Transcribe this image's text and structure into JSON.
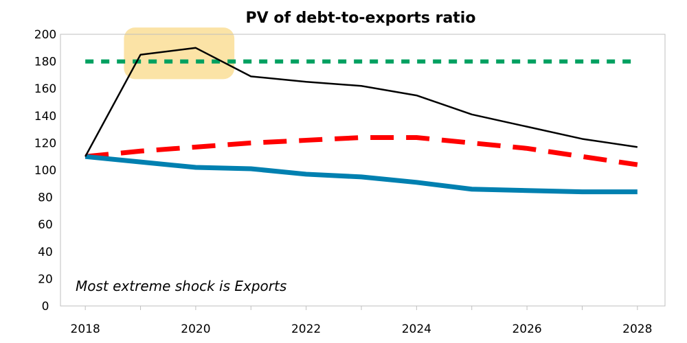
{
  "chart_data": {
    "type": "line",
    "title": "PV of debt-to-exports ratio",
    "xlabel": "",
    "ylabel": "",
    "xlim": [
      2018,
      2028
    ],
    "ylim": [
      0,
      200
    ],
    "x_ticks": [
      2018,
      2020,
      2022,
      2024,
      2026,
      2028
    ],
    "y_ticks": [
      0,
      20,
      40,
      60,
      80,
      100,
      120,
      140,
      160,
      180,
      200
    ],
    "grid": false,
    "legend": "none",
    "annotation": "Most extreme shock is Exports",
    "highlight": {
      "x_range": [
        2018.7,
        2020.7
      ],
      "y_range": [
        167,
        205
      ],
      "color": "#fbe3a6"
    },
    "series": [
      {
        "color": "#000000",
        "style": "solid-thin",
        "x": [
          2018,
          2019,
          2020,
          2021,
          2022,
          2023,
          2024,
          2025,
          2026,
          2027,
          2028
        ],
        "values": [
          110,
          185,
          190,
          169,
          165,
          162,
          155,
          141,
          132,
          123,
          117
        ]
      },
      {
        "color": "#ff0000",
        "style": "dashed",
        "x": [
          2018,
          2019,
          2020,
          2021,
          2022,
          2023,
          2024,
          2025,
          2026,
          2027,
          2028
        ],
        "values": [
          110,
          114,
          117,
          120,
          122,
          124,
          124,
          120,
          116,
          110,
          104
        ]
      },
      {
        "color": "#0080b0",
        "style": "solid-thick",
        "x": [
          2018,
          2019,
          2020,
          2021,
          2022,
          2023,
          2024,
          2025,
          2026,
          2027,
          2028
        ],
        "values": [
          110,
          106,
          102,
          101,
          97,
          95,
          91,
          86,
          85,
          84,
          84
        ]
      },
      {
        "color": "#00a060",
        "style": "dotted",
        "x": [
          2018,
          2019,
          2020,
          2021,
          2022,
          2023,
          2024,
          2025,
          2026,
          2027,
          2028
        ],
        "values": [
          180,
          180,
          180,
          180,
          180,
          180,
          180,
          180,
          180,
          180,
          180
        ]
      }
    ]
  }
}
